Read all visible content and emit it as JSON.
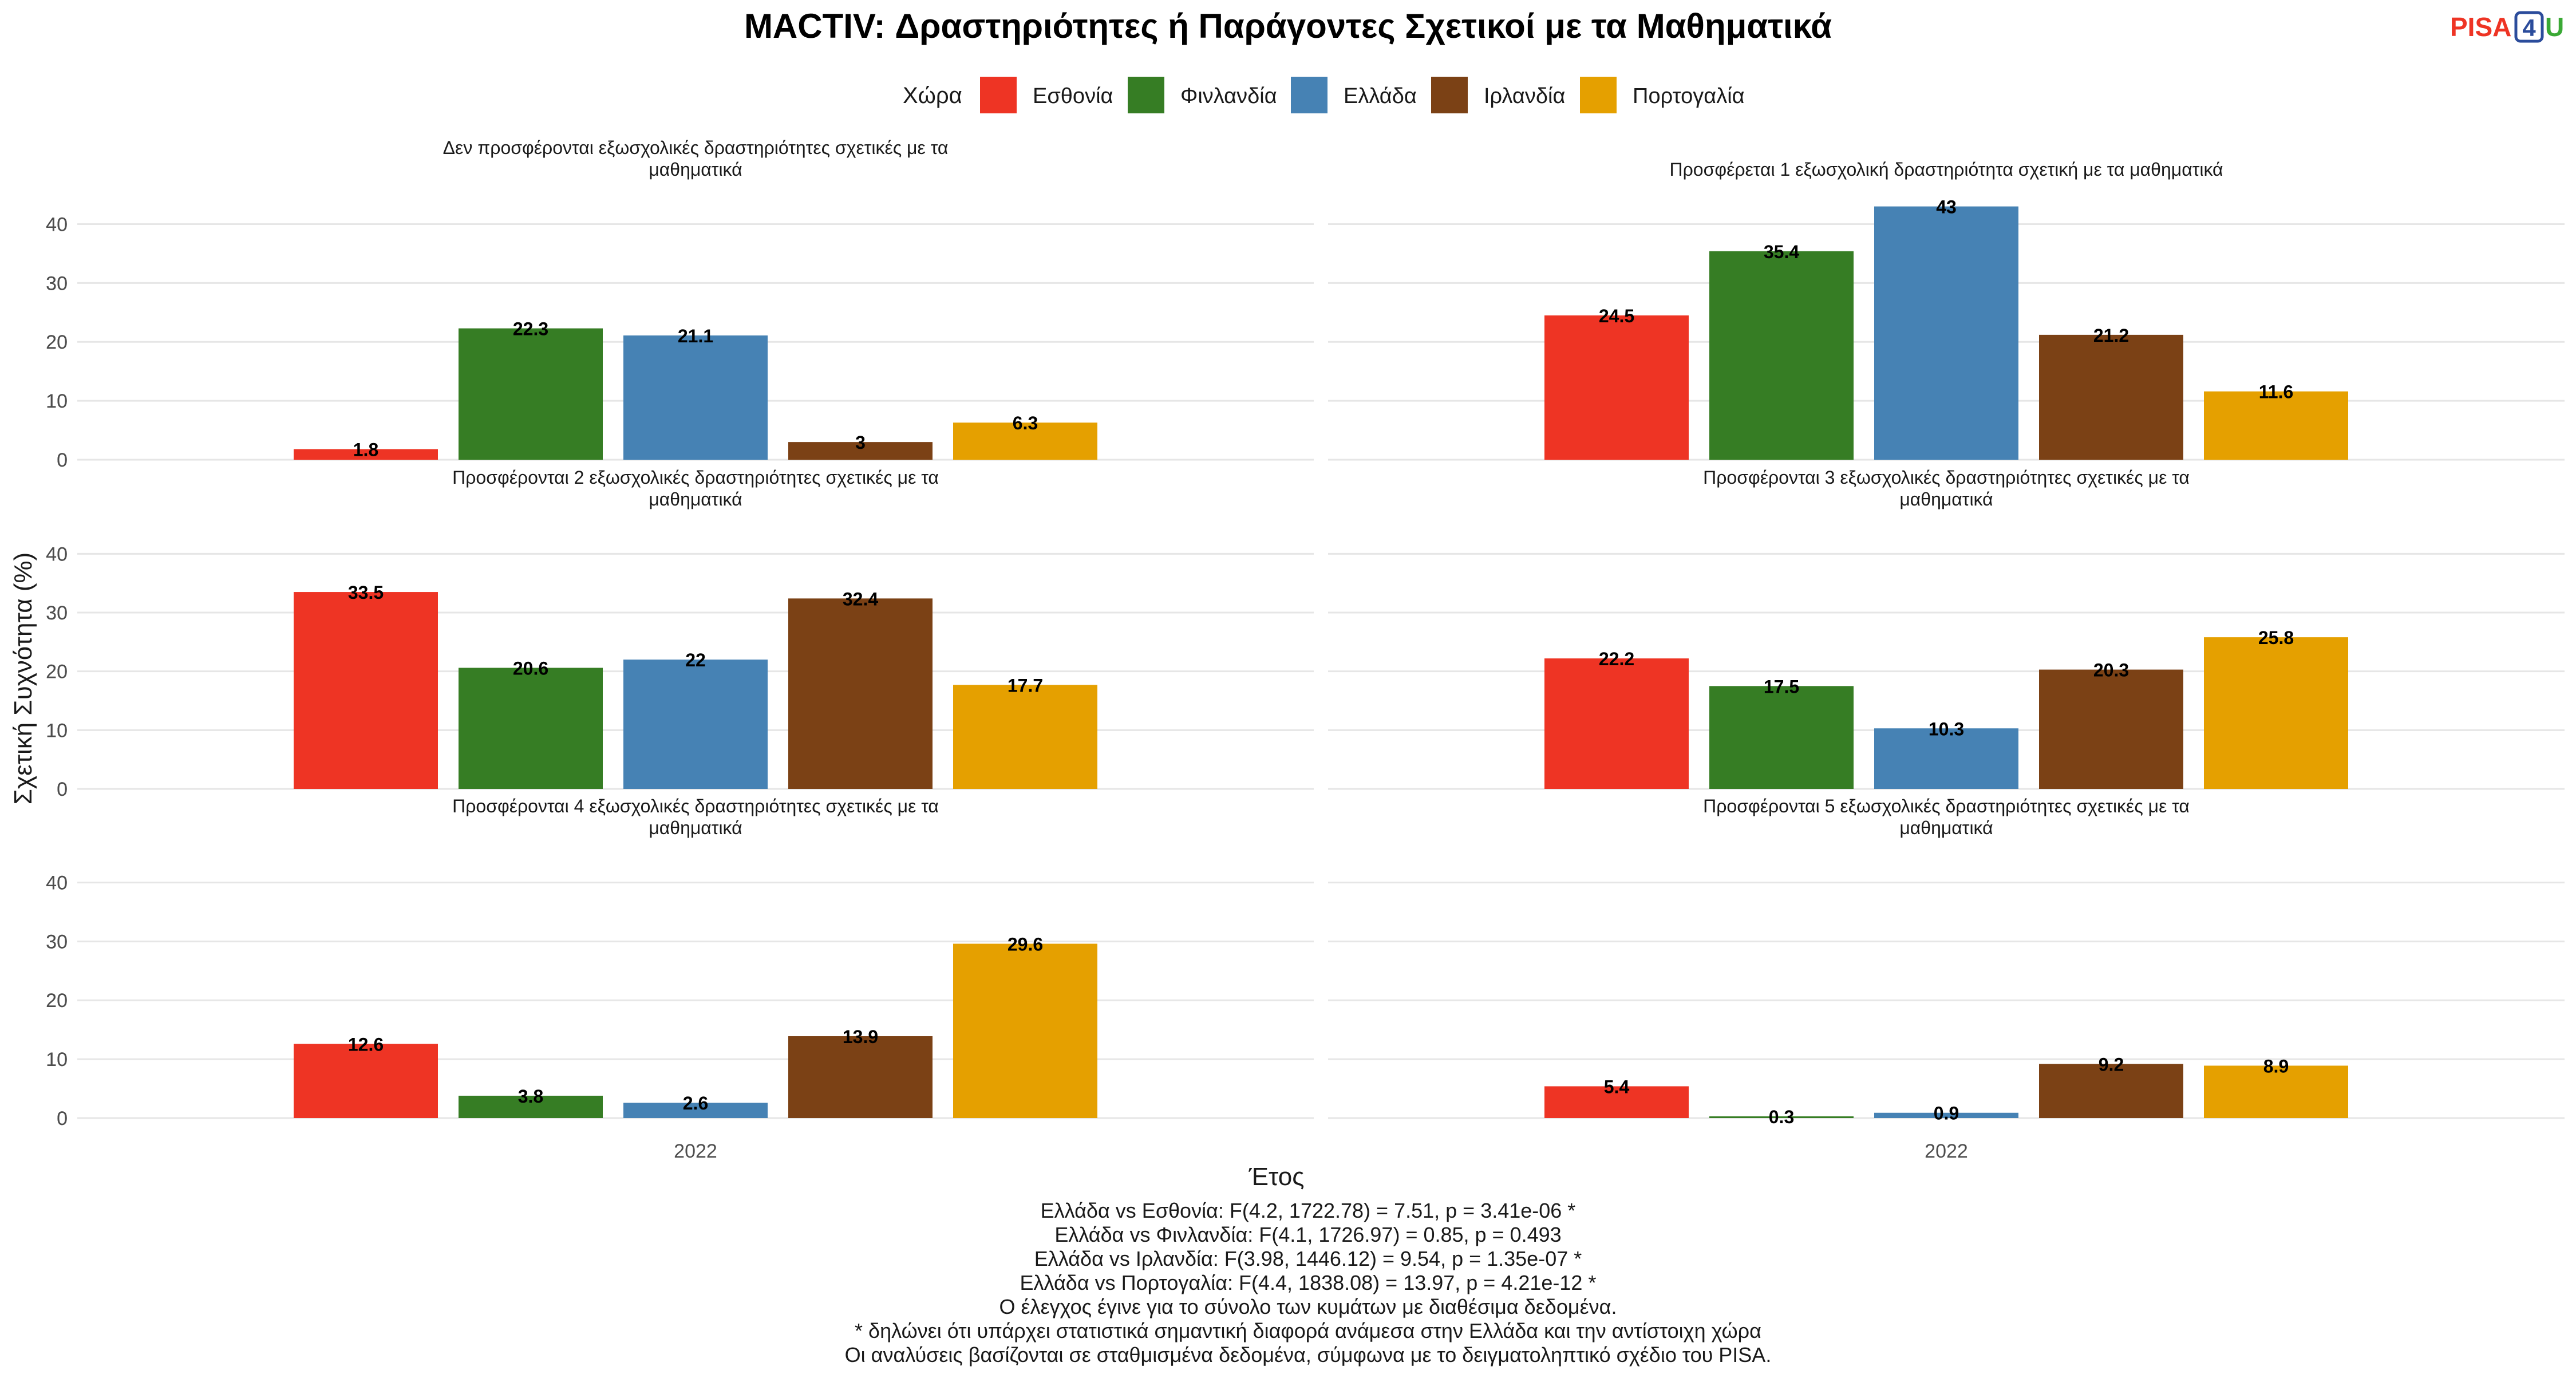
{
  "logo": {
    "part1": "PISA",
    "part2": "4",
    "part3": "U"
  },
  "chart_data": {
    "type": "bar",
    "title": "MACTIV: Δραστηριότητες ή Παράγοντες Σχετικοί με τα Μαθηματικά",
    "xlabel": "Έτος",
    "ylabel": "Σχετική Συχνότητα (%)",
    "ylim": [
      0,
      45
    ],
    "yticks": [
      0,
      10,
      20,
      30,
      40
    ],
    "grid": true,
    "legend": {
      "title": "Χώρα",
      "placement": "top",
      "entries": [
        {
          "name": "Εσθονία",
          "color": "#EE3424"
        },
        {
          "name": "Φινλανδία",
          "color": "#367D24"
        },
        {
          "name": "Ελλάδα",
          "color": "#4682B4"
        },
        {
          "name": "Ιρλανδία",
          "color": "#7B4115"
        },
        {
          "name": "Πορτογαλία",
          "color": "#E5A000"
        }
      ]
    },
    "categories": [
      "2022"
    ],
    "panels": [
      {
        "title_lines": [
          "Δεν προσφέρονται εξωσχολικές δραστηριότητες σχετικές με τα",
          "μαθηματικά"
        ],
        "values": [
          1.8,
          22.3,
          21.1,
          3,
          6.3
        ],
        "labels": [
          "1.8",
          "22.3",
          "21.1",
          "3",
          "6.3"
        ]
      },
      {
        "title_lines": [
          "Προσφέρεται 1 εξωσχολική δραστηριότητα σχετική με τα μαθηματικά"
        ],
        "values": [
          24.5,
          35.4,
          43,
          21.2,
          11.6
        ],
        "labels": [
          "24.5",
          "35.4",
          "43",
          "21.2",
          "11.6"
        ]
      },
      {
        "title_lines": [
          "Προσφέρονται 2 εξωσχολικές δραστηριότητες σχετικές με τα",
          "μαθηματικά"
        ],
        "values": [
          33.5,
          20.6,
          22,
          32.4,
          17.7
        ],
        "labels": [
          "33.5",
          "20.6",
          "22",
          "32.4",
          "17.7"
        ]
      },
      {
        "title_lines": [
          "Προσφέρονται 3 εξωσχολικές δραστηριότητες σχετικές με τα",
          "μαθηματικά"
        ],
        "values": [
          22.2,
          17.5,
          10.3,
          20.3,
          25.8
        ],
        "labels": [
          "22.2",
          "17.5",
          "10.3",
          "20.3",
          "25.8"
        ]
      },
      {
        "title_lines": [
          "Προσφέρονται 4 εξωσχολικές δραστηριότητες σχετικές με τα",
          "μαθηματικά"
        ],
        "values": [
          12.6,
          3.8,
          2.6,
          13.9,
          29.6
        ],
        "labels": [
          "12.6",
          "3.8",
          "2.6",
          "13.9",
          "29.6"
        ]
      },
      {
        "title_lines": [
          "Προσφέρονται 5 εξωσχολικές δραστηριότητες σχετικές με τα",
          "μαθηματικά"
        ],
        "values": [
          5.4,
          0.3,
          0.9,
          9.2,
          8.9
        ],
        "labels": [
          "5.4",
          "0.3",
          "0.9",
          "9.2",
          "8.9"
        ]
      }
    ],
    "caption_lines": [
      "Ελλάδα vs Εσθονία: F(4.2, 1722.78) = 7.51, p = 3.41e-06 *",
      "Ελλάδα vs Φινλανδία: F(4.1, 1726.97) = 0.85, p = 0.493",
      "Ελλάδα vs Ιρλανδία: F(3.98, 1446.12) = 9.54, p = 1.35e-07 *",
      "Ελλάδα vs Πορτογαλία: F(4.4, 1838.08) = 13.97, p = 4.21e-12 *",
      "Ο έλεγχος έγινε για το σύνολο των κυμάτων με διαθέσιμα δεδομένα.",
      "* δηλώνει ότι υπάρχει στατιστικά σημαντική διαφορά ανάμεσα στην Ελλάδα και την αντίστοιχη χώρα",
      "Οι αναλύσεις βασίζονται σε σταθμισμένα δεδομένα, σύμφωνα με το δειγματοληπτικό σχέδιο του PISA."
    ]
  }
}
